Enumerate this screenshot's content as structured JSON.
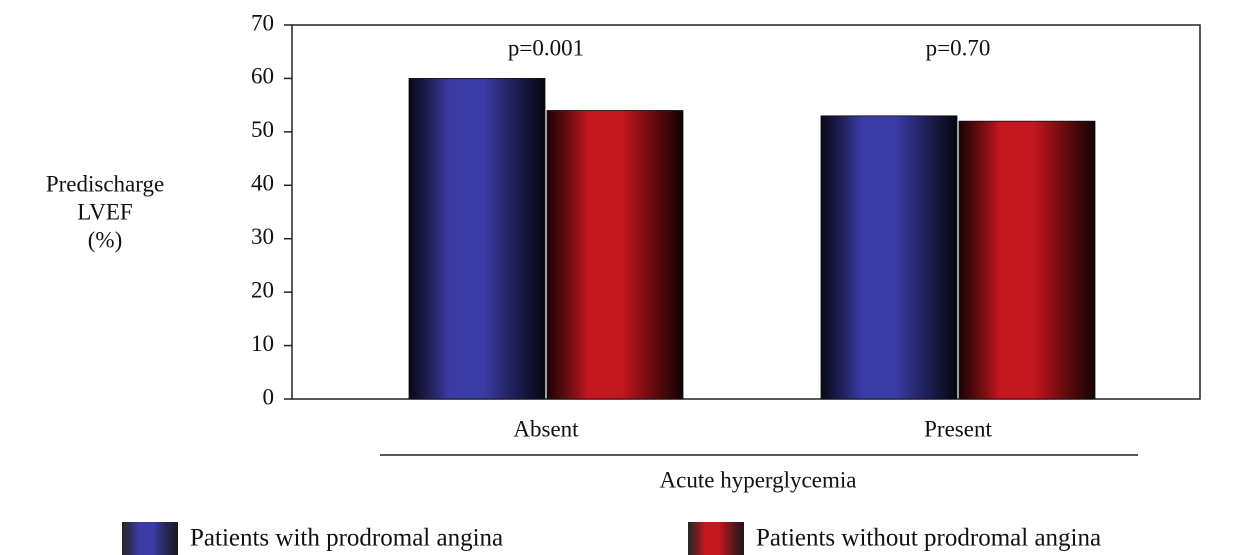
{
  "chart_data": {
    "type": "bar",
    "ylabel": [
      "Predischarge",
      "LVEF",
      "(%)"
    ],
    "xlabel": "Acute hyperglycemia",
    "categories": [
      "Absent",
      "Present"
    ],
    "annotations": [
      "p=0.001",
      "p=0.70"
    ],
    "series": [
      {
        "name": "Patients with prodromal angina",
        "color": "#3b3ba6",
        "values": [
          60,
          53
        ]
      },
      {
        "name": "Patients without prodromal angina",
        "color": "#c4161e",
        "values": [
          54,
          52
        ]
      }
    ],
    "ylim": [
      0,
      70
    ],
    "yticks": [
      0,
      10,
      20,
      30,
      40,
      50,
      60,
      70
    ],
    "grid": false
  }
}
